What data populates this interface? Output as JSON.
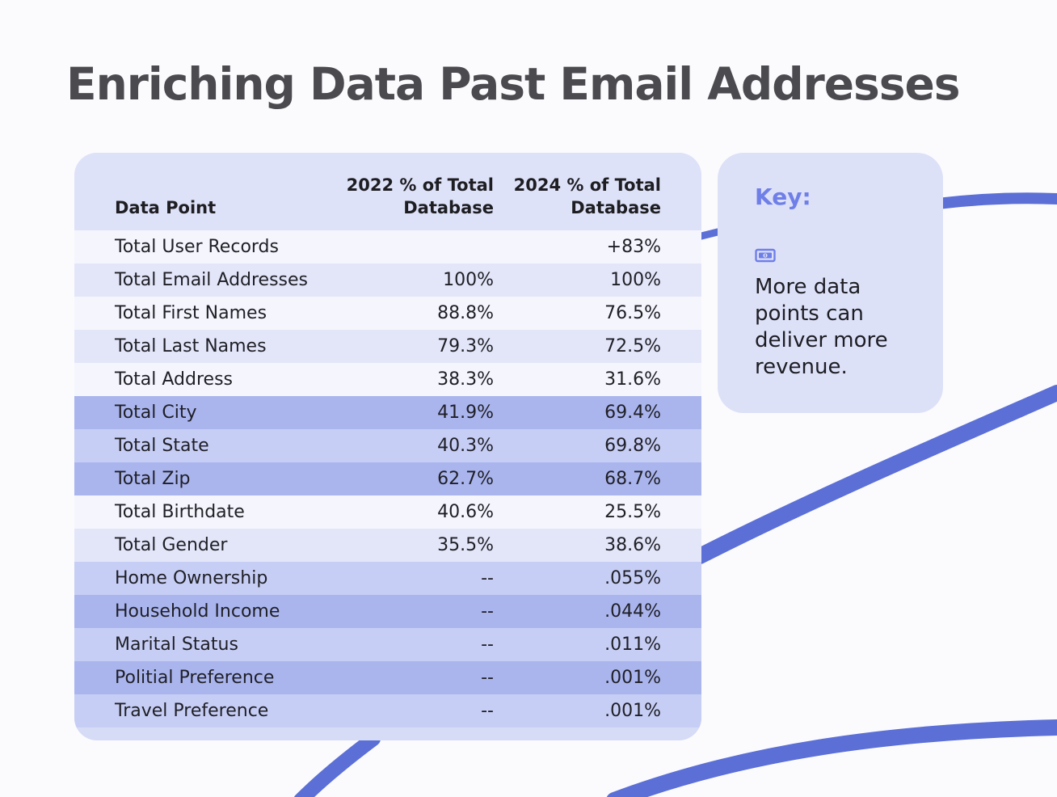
{
  "page": {
    "title": "Enriching Data Past Email Addresses",
    "colors": {
      "accent": "#5b6fd6",
      "title": "#4a4a4f",
      "key_title": "#6f7fe8"
    }
  },
  "table": {
    "headers": {
      "data_point": "Data Point",
      "col_2022_line1": "2022 % of Total",
      "col_2022_line2": "Database",
      "col_2024_line1": "2024 % of Total",
      "col_2024_line2": "Database"
    },
    "rows": [
      {
        "label": "Total User Records",
        "y2022": "",
        "y2024": "+83%"
      },
      {
        "label": "Total Email Addresses",
        "y2022": "100%",
        "y2024": "100%"
      },
      {
        "label": "Total First Names",
        "y2022": "88.8%",
        "y2024": "76.5%"
      },
      {
        "label": "Total Last Names",
        "y2022": "79.3%",
        "y2024": "72.5%"
      },
      {
        "label": "Total Address",
        "y2022": "38.3%",
        "y2024": "31.6%"
      },
      {
        "label": "Total City",
        "y2022": "41.9%",
        "y2024": "69.4%"
      },
      {
        "label": "Total State",
        "y2022": "40.3%",
        "y2024": "69.8%"
      },
      {
        "label": "Total Zip",
        "y2022": "62.7%",
        "y2024": "68.7%"
      },
      {
        "label": "Total Birthdate",
        "y2022": "40.6%",
        "y2024": "25.5%"
      },
      {
        "label": "Total Gender",
        "y2022": "35.5%",
        "y2024": "38.6%"
      },
      {
        "label": "Home Ownership",
        "y2022": "--",
        "y2024": ".055%"
      },
      {
        "label": "Household Income",
        "y2022": "--",
        "y2024": ".044%"
      },
      {
        "label": "Marital Status",
        "y2022": "--",
        "y2024": ".011%"
      },
      {
        "label": "Politial Preference",
        "y2022": "--",
        "y2024": ".001%"
      },
      {
        "label": "Travel Preference",
        "y2022": "--",
        "y2024": ".001%"
      }
    ]
  },
  "key": {
    "title": "Key:",
    "icon": "money-icon",
    "text": "More data points can deliver more revenue."
  }
}
